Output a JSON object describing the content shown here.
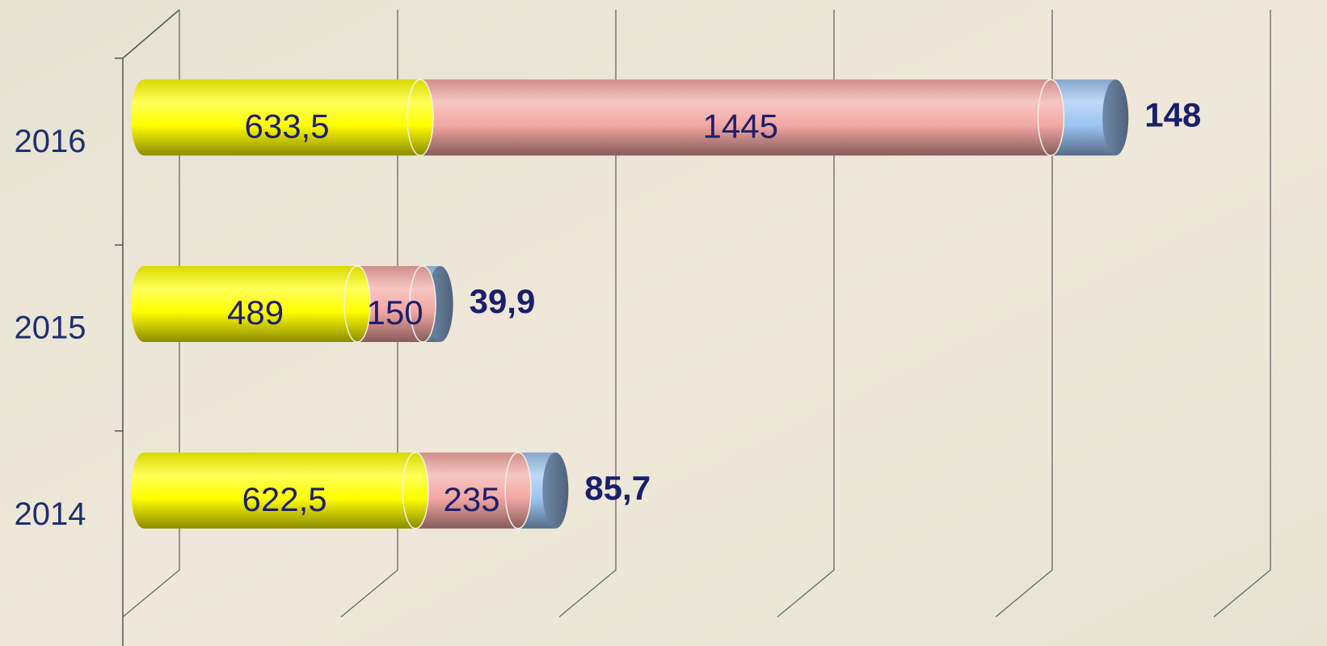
{
  "chart_data": {
    "type": "bar3d_stacked_horizontal",
    "categories": [
      "2014",
      "2015",
      "2016"
    ],
    "series": [
      {
        "color": "#ffff00",
        "values": [
          622.5,
          489,
          633.5
        ],
        "value_labels": [
          "622,5",
          "489",
          "633,5"
        ]
      },
      {
        "color": "#f2a7a3",
        "values": [
          235,
          150,
          1445
        ],
        "value_labels": [
          "235",
          "150",
          "1445"
        ]
      },
      {
        "color": "#9dc4f2",
        "values": [
          85.7,
          39.9,
          148
        ],
        "value_labels": [
          "85,7",
          "39,9",
          "148"
        ]
      }
    ],
    "xlim": [
      0,
      2700
    ],
    "xticks": [
      0,
      500,
      1000,
      1500,
      2000,
      2500
    ],
    "grid": true
  }
}
